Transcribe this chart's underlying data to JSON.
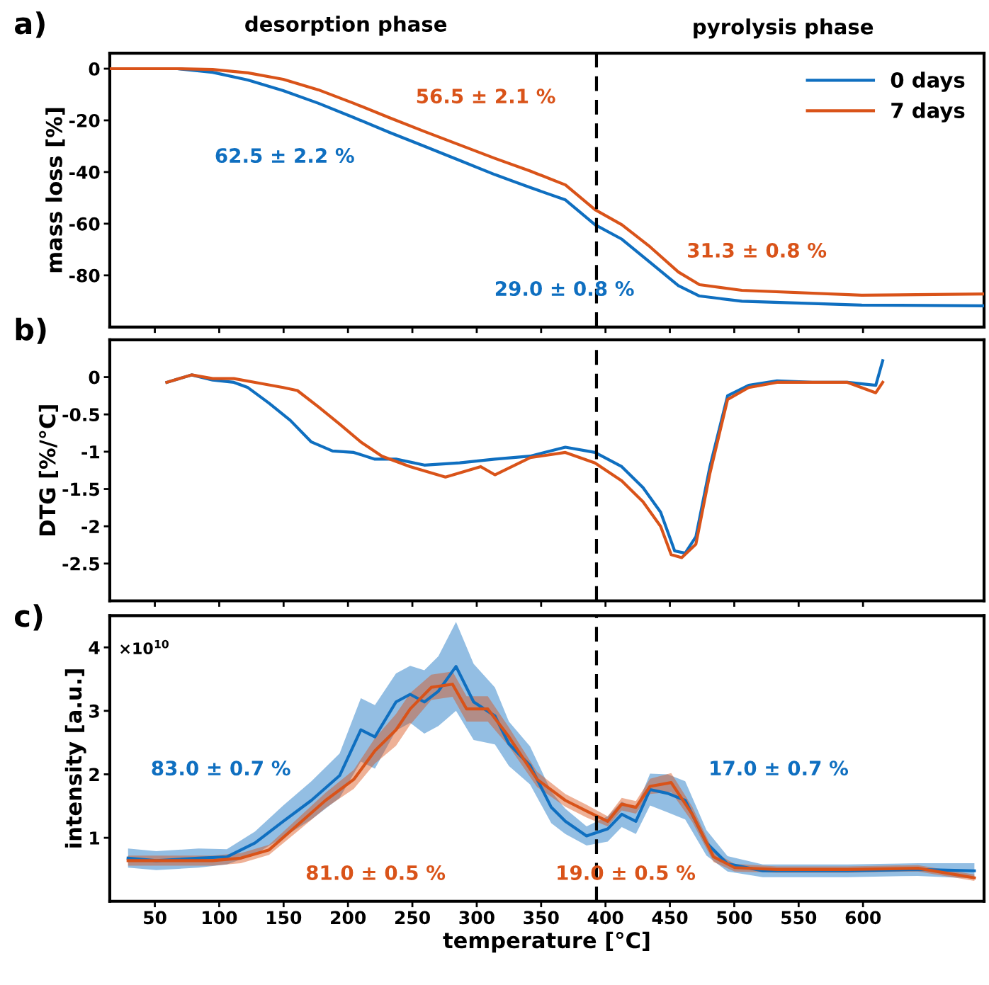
{
  "chart_data": [
    {
      "type": "line",
      "ylabel": "mass loss [%]",
      "xlim": [
        15,
        694
      ],
      "xticks": [
        50,
        100,
        150,
        200,
        250,
        300,
        350,
        400,
        450,
        500,
        550,
        600
      ],
      "ylim": [
        -100,
        6
      ],
      "yticks": [
        0,
        -20,
        -40,
        -60,
        -80
      ],
      "tick_labels": "y",
      "grid": false,
      "legend": "top right",
      "marker": "none",
      "line_style": "solid",
      "annotations": [
        "a)",
        "desorption phase",
        "pyrolysis phase",
        "56.5 ± 2.1 %",
        "62.5 ± 2.2 %",
        "31.3 ± 0.8 %",
        "29.0 ± 0.8 %"
      ],
      "ref_lines": [
        {
          "axis": "x",
          "value": 393,
          "label": null,
          "color": "#000000",
          "line_style": "dashed"
        }
      ],
      "series": [
        {
          "name": "0 days",
          "color": "#0f6fc0",
          "x": [
            15.5,
            67.5,
            94.9,
            122.3,
            149.7,
            177.1,
            204.5,
            231.9,
            259.3,
            286.7,
            314.1,
            341.5,
            368.9,
            391.9,
            412.7,
            434.7,
            456.6,
            473,
            505.9,
            599,
            694
          ],
          "values": [
            0,
            0,
            -1.4,
            -4.4,
            -8.5,
            -13.4,
            -18.9,
            -24.6,
            -30,
            -35.5,
            -41,
            -46,
            -50.8,
            -60.4,
            -66,
            -75,
            -84,
            -88,
            -90,
            -91.5,
            -91.8
          ]
        },
        {
          "name": "7 days",
          "color": "#d95319",
          "x": [
            15.5,
            67.5,
            94.9,
            122.3,
            149.7,
            177.1,
            204.5,
            231.9,
            259.3,
            286.7,
            314.1,
            341.5,
            368.9,
            391.9,
            412.7,
            434.7,
            456.6,
            473,
            505.9,
            599,
            694
          ],
          "values": [
            0,
            0,
            -0.3,
            -1.6,
            -4.1,
            -8.2,
            -13.4,
            -18.9,
            -24.3,
            -29.5,
            -34.7,
            -39.6,
            -45,
            -54.6,
            -60.4,
            -69,
            -78.7,
            -83.6,
            -85.8,
            -87.7,
            -87.2
          ]
        }
      ]
    },
    {
      "type": "line",
      "ylabel": "DTG [%/°C]",
      "xlim": [
        15,
        694
      ],
      "xticks": [
        50,
        100,
        150,
        200,
        250,
        300,
        350,
        400,
        450,
        500,
        550,
        600
      ],
      "ylim": [
        -3,
        0.5
      ],
      "yticks": [
        0,
        {
          "value": -0.5,
          "label": "-0.5"
        },
        -1,
        {
          "value": -1.5,
          "label": "-1.5"
        },
        -2,
        {
          "value": -2.5,
          "label": "-2.5"
        }
      ],
      "tick_labels": "y",
      "grid": false,
      "marker": "none",
      "line_style": "solid",
      "annotations": [
        "b)"
      ],
      "ref_lines": [
        {
          "axis": "x",
          "value": 393,
          "label": null,
          "color": "#000000",
          "line_style": "dashed"
        }
      ],
      "series": [
        {
          "color": "#0f6fc0",
          "x": [
            59.3,
            78.5,
            94.9,
            111.4,
            122.3,
            138.7,
            155.2,
            171.6,
            188,
            204.5,
            220.9,
            237.3,
            259.3,
            286.7,
            314.1,
            341.4,
            368.8,
            391.8,
            412.6,
            429.1,
            442.8,
            453.7,
            461.9,
            470.2,
            481.1,
            494.8,
            511.2,
            533.2,
            560.5,
            587.9,
            609.9,
            615.3
          ],
          "values": [
            -0.07,
            0.03,
            -0.04,
            -0.07,
            -0.14,
            -0.35,
            -0.58,
            -0.87,
            -0.99,
            -1.01,
            -1.1,
            -1.1,
            -1.18,
            -1.15,
            -1.1,
            -1.06,
            -0.94,
            -1.01,
            -1.2,
            -1.48,
            -1.81,
            -2.33,
            -2.36,
            -2.14,
            -1.2,
            -0.25,
            -0.11,
            -0.05,
            -0.07,
            -0.07,
            -0.11,
            0.22
          ]
        },
        {
          "color": "#d95319",
          "x": [
            59.3,
            78.5,
            94.9,
            111.4,
            127.8,
            149.7,
            160.7,
            177.1,
            193.5,
            210,
            226.4,
            248.3,
            275.7,
            303.1,
            314.1,
            341.4,
            368.8,
            391.8,
            412.6,
            429.1,
            442.8,
            451,
            459.2,
            470.2,
            481.1,
            494.8,
            511.2,
            533.2,
            560.5,
            587.9,
            609.9,
            615.3
          ],
          "values": [
            -0.07,
            0.03,
            -0.02,
            -0.02,
            -0.07,
            -0.14,
            -0.18,
            -0.4,
            -0.63,
            -0.87,
            -1.06,
            -1.2,
            -1.34,
            -1.2,
            -1.31,
            -1.08,
            -1.01,
            -1.15,
            -1.39,
            -1.67,
            -2.0,
            -2.38,
            -2.42,
            -2.24,
            -1.29,
            -0.3,
            -0.14,
            -0.07,
            -0.07,
            -0.07,
            -0.21,
            -0.07
          ]
        }
      ]
    },
    {
      "type": "line",
      "xlabel": "temperature [°C]",
      "ylabel": "intensity [a.u.]",
      "xlim": [
        15,
        694
      ],
      "xticks": [
        50,
        100,
        150,
        200,
        250,
        300,
        350,
        400,
        450,
        500,
        550,
        600
      ],
      "ylim": [
        0,
        4.5
      ],
      "yticks": [
        1,
        2,
        3,
        4
      ],
      "grid": false,
      "marker": "none",
      "line_style": "solid",
      "annotations": [
        "c)",
        "×10$^{10}$",
        "83.0 ± 0.7 %",
        "17.0 ± 0.7 %",
        "81.0 ± 0.5 %",
        "19.0 ± 0.5 %"
      ],
      "ref_lines": [
        {
          "axis": "x",
          "value": 393,
          "label": null,
          "color": "#000000",
          "line_style": "dashed"
        }
      ],
      "series": [
        {
          "color": "#0f6fc0",
          "x": [
            29.2,
            51.1,
            84,
            105.9,
            127.8,
            149.7,
            171.6,
            193.5,
            210,
            220.9,
            237.3,
            248.3,
            259.3,
            270.2,
            283.9,
            297.6,
            314.1,
            325,
            341.4,
            357.9,
            368.8,
            385.3,
            401.7,
            412.6,
            423.6,
            434.6,
            448.3,
            461.9,
            478.4,
            494.8,
            522.2,
            587.9,
            642.7,
            686.5
          ],
          "values": [
            0.68,
            0.64,
            0.68,
            0.7,
            0.92,
            1.26,
            1.59,
            1.98,
            2.7,
            2.59,
            3.14,
            3.26,
            3.14,
            3.31,
            3.7,
            3.14,
            2.92,
            2.48,
            2.14,
            1.48,
            1.26,
            1.03,
            1.14,
            1.37,
            1.26,
            1.76,
            1.7,
            1.59,
            0.92,
            0.59,
            0.48,
            0.48,
            0.5,
            0.48
          ],
          "lower": [
            0.53,
            0.49,
            0.53,
            0.58,
            0.74,
            1.01,
            1.29,
            1.63,
            2.2,
            2.09,
            2.69,
            2.81,
            2.64,
            2.76,
            3.0,
            2.54,
            2.47,
            2.13,
            1.84,
            1.23,
            1.06,
            0.88,
            0.94,
            1.17,
            1.06,
            1.51,
            1.4,
            1.29,
            0.72,
            0.47,
            0.38,
            0.38,
            0.4,
            0.36
          ],
          "upper": [
            0.83,
            0.79,
            0.83,
            0.82,
            1.1,
            1.51,
            1.89,
            2.33,
            3.2,
            3.09,
            3.59,
            3.71,
            3.64,
            3.86,
            4.4,
            3.74,
            3.37,
            2.83,
            2.44,
            1.73,
            1.46,
            1.18,
            1.34,
            1.57,
            1.46,
            2.01,
            2.0,
            1.89,
            1.12,
            0.71,
            0.58,
            0.58,
            0.6,
            0.6
          ]
        },
        {
          "color": "#d95319",
          "x": [
            29.2,
            94.9,
            116.8,
            138.7,
            160.7,
            182.6,
            204.5,
            220.9,
            237.3,
            248.3,
            264.7,
            281.2,
            292.1,
            308.6,
            325,
            346.9,
            368.8,
            385.3,
            401.7,
            412.6,
            423.6,
            434.6,
            451,
            467.4,
            483.9,
            500.3,
            533.2,
            587.9,
            642.7,
            686.5
          ],
          "values": [
            0.64,
            0.64,
            0.68,
            0.81,
            1.2,
            1.59,
            1.92,
            2.37,
            2.7,
            3.03,
            3.37,
            3.42,
            3.03,
            3.03,
            2.59,
            1.92,
            1.59,
            1.42,
            1.26,
            1.53,
            1.48,
            1.81,
            1.87,
            1.37,
            0.7,
            0.53,
            0.5,
            0.5,
            0.52,
            0.37
          ],
          "lower": [
            0.56,
            0.56,
            0.6,
            0.73,
            1.1,
            1.47,
            1.77,
            2.17,
            2.45,
            2.78,
            3.17,
            3.22,
            2.83,
            2.83,
            2.44,
            1.8,
            1.49,
            1.32,
            1.18,
            1.43,
            1.38,
            1.69,
            1.72,
            1.25,
            0.62,
            0.47,
            0.45,
            0.45,
            0.47,
            0.32
          ],
          "upper": [
            0.72,
            0.72,
            0.76,
            0.89,
            1.3,
            1.71,
            2.07,
            2.57,
            2.95,
            3.28,
            3.57,
            3.62,
            3.23,
            3.23,
            2.74,
            2.04,
            1.69,
            1.52,
            1.34,
            1.63,
            1.58,
            1.93,
            2.02,
            1.49,
            0.78,
            0.59,
            0.55,
            0.55,
            0.57,
            0.42
          ]
        }
      ]
    }
  ]
}
